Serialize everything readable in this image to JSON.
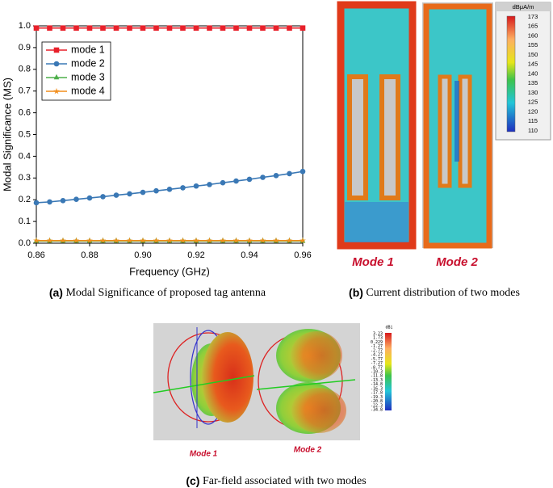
{
  "chart_data": {
    "type": "line",
    "x_label": "Frequency (GHz)",
    "y_label": "Modal Significance (MS)",
    "x": [
      0.86,
      0.865,
      0.87,
      0.875,
      0.88,
      0.885,
      0.89,
      0.895,
      0.9,
      0.905,
      0.91,
      0.915,
      0.92,
      0.925,
      0.93,
      0.935,
      0.94,
      0.945,
      0.95,
      0.955,
      0.96
    ],
    "series": [
      {
        "name": "mode 1",
        "color": "#e8202a",
        "marker": "square",
        "values": [
          0.99,
          0.99,
          0.99,
          0.99,
          0.99,
          0.99,
          0.99,
          0.99,
          0.99,
          0.99,
          0.99,
          0.99,
          0.99,
          0.99,
          0.99,
          0.99,
          0.99,
          0.99,
          0.99,
          0.99,
          0.99
        ]
      },
      {
        "name": "mode 2",
        "color": "#3a78b5",
        "marker": "circle",
        "values": [
          0.186,
          0.19,
          0.196,
          0.202,
          0.208,
          0.214,
          0.221,
          0.227,
          0.234,
          0.241,
          0.248,
          0.255,
          0.263,
          0.27,
          0.278,
          0.286,
          0.294,
          0.303,
          0.311,
          0.32,
          0.33
        ]
      },
      {
        "name": "mode 3",
        "color": "#4daf4a",
        "marker": "triangle",
        "values": [
          0.01,
          0.01,
          0.01,
          0.01,
          0.01,
          0.01,
          0.01,
          0.01,
          0.01,
          0.01,
          0.01,
          0.01,
          0.01,
          0.01,
          0.01,
          0.01,
          0.01,
          0.01,
          0.01,
          0.01,
          0.01
        ]
      },
      {
        "name": "mode 4",
        "color": "#f28e1c",
        "marker": "star",
        "values": [
          0.012,
          0.012,
          0.012,
          0.012,
          0.012,
          0.012,
          0.012,
          0.012,
          0.012,
          0.012,
          0.012,
          0.012,
          0.012,
          0.012,
          0.012,
          0.012,
          0.012,
          0.012,
          0.012,
          0.012,
          0.012
        ]
      }
    ],
    "xlim": [
      0.86,
      0.96
    ],
    "xticks": [
      0.86,
      0.88,
      {
        "value": 0.9,
        "label": "0.90"
      },
      0.92,
      0.94,
      0.96
    ],
    "ylim": [
      0,
      1
    ],
    "yticks": [
      {
        "value": 0,
        "label": "0.0"
      },
      0.1,
      0.2,
      0.3,
      0.4,
      0.5,
      0.6,
      0.7,
      0.8,
      0.9,
      {
        "value": 1,
        "label": "1.0"
      }
    ],
    "legend": "upper left"
  },
  "caption_a": {
    "label": "(a)",
    "text": "Modal Significance of proposed tag antenna"
  },
  "current_distribution": {
    "colorbar_unit": "dBμA/m",
    "colorbar_ticks": [
      "173",
      "165",
      "160",
      "155",
      "150",
      "145",
      "140",
      "135",
      "130",
      "125",
      "120",
      "115",
      "110"
    ],
    "mode_labels": [
      "Mode 1",
      "Mode 2"
    ]
  },
  "caption_b": {
    "label": "(b)",
    "text": "Current distribution of two modes"
  },
  "far_field": {
    "colorbar_unit": "dBi",
    "colorbar_ticks": [
      "3.23",
      "1.73",
      "0.229",
      "-1.27",
      "-2.77",
      "-4.27",
      "-5.77",
      "-7.27",
      "-8.77",
      "-10.3",
      "-11.8",
      "-13.3",
      "-14.8",
      "-16.3",
      "-17.8",
      "-19.3",
      "-20.8",
      "-22.3",
      "-34.8"
    ],
    "mode_labels": [
      "Mode 1",
      "Mode 2"
    ]
  },
  "caption_c": {
    "label": "(c)",
    "text": "Far-field associated with two modes"
  }
}
